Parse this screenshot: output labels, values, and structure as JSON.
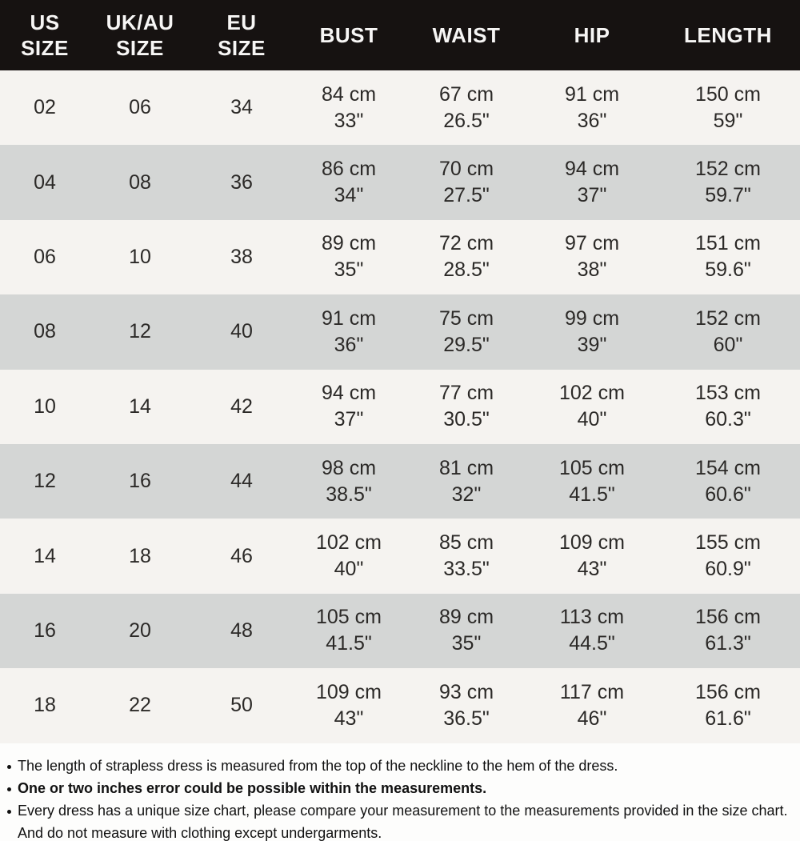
{
  "table": {
    "headers": [
      {
        "l1": "US",
        "l2": "SIZE"
      },
      {
        "l1": "UK/AU",
        "l2": "SIZE"
      },
      {
        "l1": "EU",
        "l2": "SIZE"
      },
      {
        "l1": "BUST",
        "l2": ""
      },
      {
        "l1": "WAIST",
        "l2": ""
      },
      {
        "l1": "HIP",
        "l2": ""
      },
      {
        "l1": "LENGTH",
        "l2": ""
      }
    ],
    "rows": [
      {
        "us": "02",
        "uk": "06",
        "eu": "34",
        "bust_cm": "84 cm",
        "bust_in": "33\"",
        "waist_cm": "67 cm",
        "waist_in": "26.5\"",
        "hip_cm": "91 cm",
        "hip_in": "36\"",
        "len_cm": "150 cm",
        "len_in": "59\""
      },
      {
        "us": "04",
        "uk": "08",
        "eu": "36",
        "bust_cm": "86 cm",
        "bust_in": "34\"",
        "waist_cm": "70 cm",
        "waist_in": "27.5\"",
        "hip_cm": "94 cm",
        "hip_in": "37\"",
        "len_cm": "152 cm",
        "len_in": "59.7\""
      },
      {
        "us": "06",
        "uk": "10",
        "eu": "38",
        "bust_cm": "89 cm",
        "bust_in": "35\"",
        "waist_cm": "72 cm",
        "waist_in": "28.5\"",
        "hip_cm": "97 cm",
        "hip_in": "38\"",
        "len_cm": "151 cm",
        "len_in": "59.6\""
      },
      {
        "us": "08",
        "uk": "12",
        "eu": "40",
        "bust_cm": "91 cm",
        "bust_in": "36\"",
        "waist_cm": "75 cm",
        "waist_in": "29.5\"",
        "hip_cm": "99 cm",
        "hip_in": "39\"",
        "len_cm": "152 cm",
        "len_in": "60\""
      },
      {
        "us": "10",
        "uk": "14",
        "eu": "42",
        "bust_cm": "94 cm",
        "bust_in": "37\"",
        "waist_cm": "77 cm",
        "waist_in": "30.5\"",
        "hip_cm": "102 cm",
        "hip_in": "40\"",
        "len_cm": "153 cm",
        "len_in": "60.3\""
      },
      {
        "us": "12",
        "uk": "16",
        "eu": "44",
        "bust_cm": "98 cm",
        "bust_in": "38.5\"",
        "waist_cm": "81 cm",
        "waist_in": "32\"",
        "hip_cm": "105 cm",
        "hip_in": "41.5\"",
        "len_cm": "154 cm",
        "len_in": "60.6\""
      },
      {
        "us": "14",
        "uk": "18",
        "eu": "46",
        "bust_cm": "102 cm",
        "bust_in": "40\"",
        "waist_cm": "85 cm",
        "waist_in": "33.5\"",
        "hip_cm": "109 cm",
        "hip_in": "43\"",
        "len_cm": "155 cm",
        "len_in": "60.9\""
      },
      {
        "us": "16",
        "uk": "20",
        "eu": "48",
        "bust_cm": "105 cm",
        "bust_in": "41.5\"",
        "waist_cm": "89 cm",
        "waist_in": "35\"",
        "hip_cm": "113 cm",
        "hip_in": "44.5\"",
        "len_cm": "156 cm",
        "len_in": "61.3\""
      },
      {
        "us": "18",
        "uk": "22",
        "eu": "50",
        "bust_cm": "109 cm",
        "bust_in": "43\"",
        "waist_cm": "93 cm",
        "waist_in": "36.5\"",
        "hip_cm": "117 cm",
        "hip_in": "46\"",
        "len_cm": "156 cm",
        "len_in": "61.6\""
      }
    ]
  },
  "notes": [
    {
      "text": "The length of strapless dress is measured from the top of the neckline to the hem of the dress."
    },
    {
      "text": "One or two inches error could be possible within the measurements."
    },
    {
      "text": "Every dress has a unique size chart, please compare your measurement to the measurements provided in the size chart. And do not measure with clothing except undergarments."
    }
  ],
  "colors": {
    "header_bg": "#161211",
    "header_text": "#f7f6f5",
    "row_light": "#f5f3f0",
    "row_dark": "#d4d6d5",
    "cell_text": "#2b2927",
    "notes_text": "#111111"
  }
}
